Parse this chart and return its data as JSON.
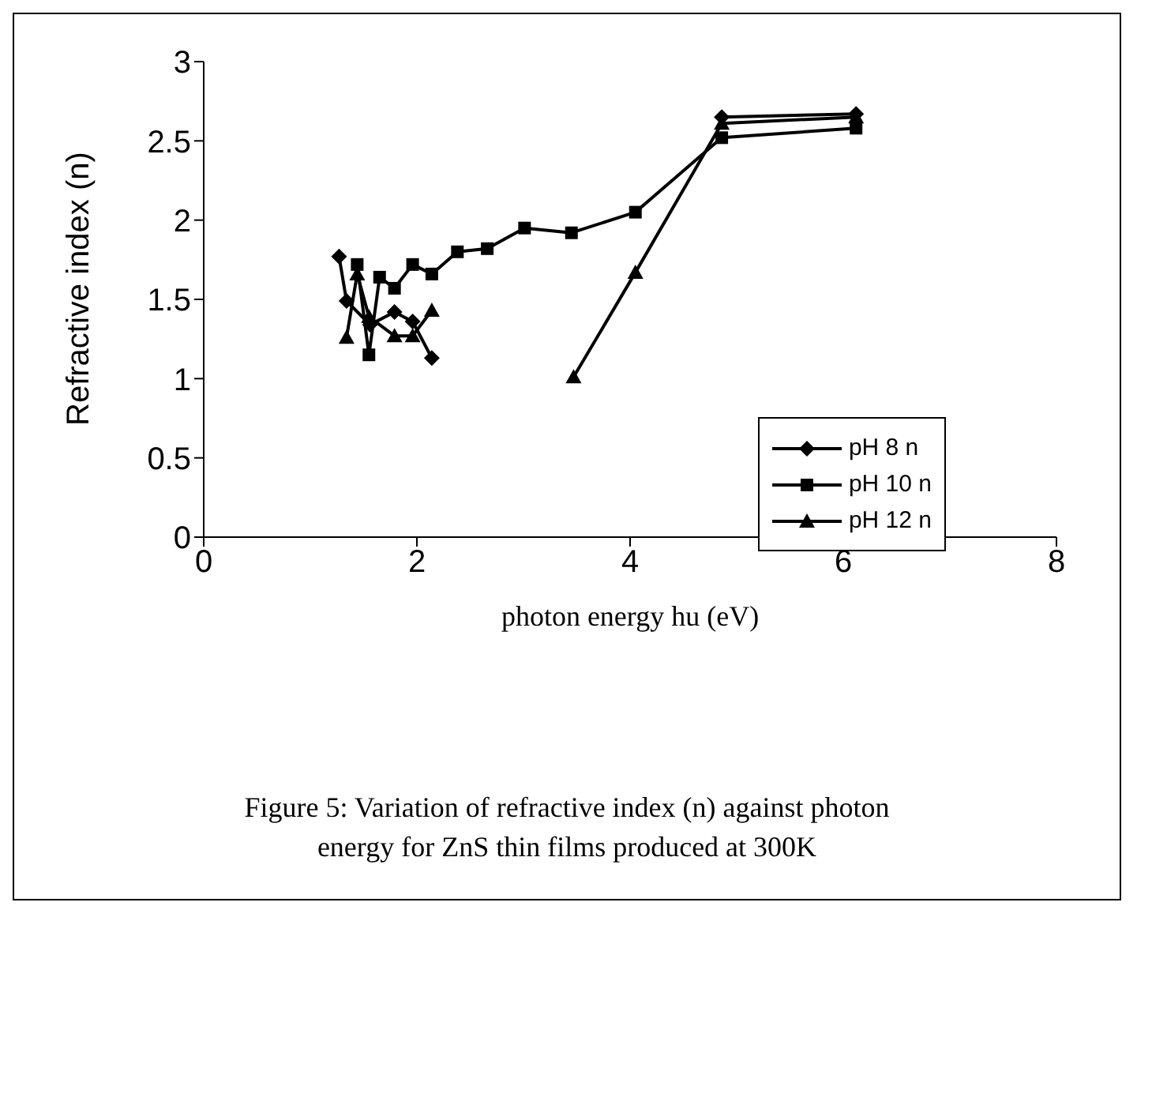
{
  "chart_data": {
    "type": "line",
    "xlabel": "photon energy hu (eV)",
    "ylabel": "Refractive index (n)",
    "xlim": [
      0,
      8
    ],
    "xticks": [
      0,
      2,
      4,
      6,
      8
    ],
    "ylim": [
      0,
      3
    ],
    "yticks": [
      0,
      0.5,
      1,
      1.5,
      2,
      2.5,
      3
    ],
    "grid": false,
    "legend": "bottom right",
    "line_style": "solid",
    "series": [
      {
        "name": "pH 8 n",
        "color": "#000000",
        "marker": "diamond",
        "x": [
          1.27,
          1.34,
          1.56,
          1.79,
          1.96,
          2.14,
          3.5,
          4.86,
          6.12
        ],
        "values": [
          1.77,
          1.49,
          1.34,
          1.42,
          1.36,
          1.13,
          null,
          2.65,
          2.67
        ]
      },
      {
        "name": "pH 10 n",
        "color": "#000000",
        "marker": "square",
        "x": [
          1.44,
          1.55,
          1.65,
          1.79,
          1.96,
          2.14,
          2.38,
          2.66,
          3.01,
          3.45,
          4.05,
          4.86,
          6.12
        ],
        "values": [
          1.72,
          1.15,
          1.64,
          1.57,
          1.72,
          1.66,
          1.8,
          1.82,
          1.95,
          1.92,
          2.05,
          2.52,
          2.58
        ]
      },
      {
        "name": "pH 12 n",
        "color": "#000000",
        "marker": "triangle",
        "x": [
          1.34,
          1.44,
          1.55,
          1.79,
          1.96,
          2.14,
          2.8,
          3.47,
          4.05,
          4.86,
          6.12
        ],
        "values": [
          1.26,
          1.66,
          1.39,
          1.27,
          1.27,
          1.43,
          null,
          1.01,
          1.67,
          2.61,
          2.65
        ]
      }
    ],
    "annotations": [
      "Figure 5: Variation of refractive index (n) against photon energy for ZnS thin films produced at 300K"
    ]
  }
}
